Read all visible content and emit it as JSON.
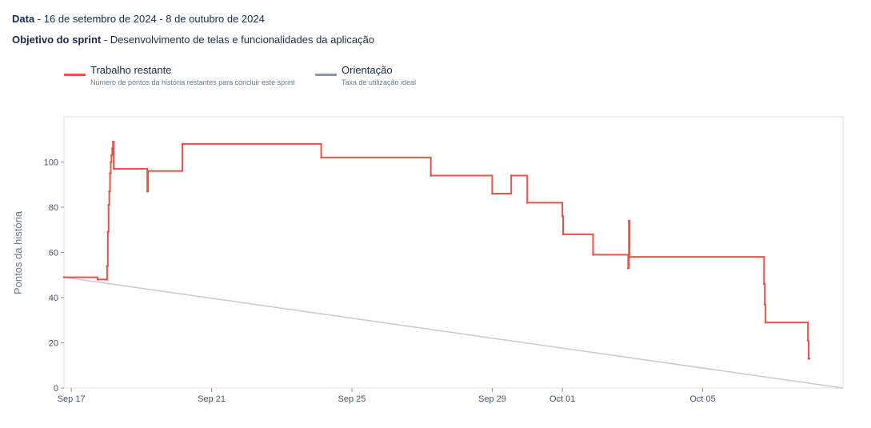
{
  "header": {
    "date_label": "Data",
    "date_value": "16 de setembro de 2024 - 8 de outubro de 2024",
    "goal_label": "Objetivo do sprint",
    "goal_value": "Desenvolvimento de telas e funcionalidades da aplicação",
    "separator": " - "
  },
  "legend": {
    "remaining": {
      "title": "Trabalho restante",
      "subtitle": "Número de pontos da história restantes para concluir este sprint",
      "color": "#e5544b"
    },
    "guide": {
      "title": "Orientação",
      "subtitle": "Taxa de utilização ideal",
      "color": "#8993a4"
    }
  },
  "chart_data": {
    "type": "line",
    "ylabel": "Pontos da história",
    "xlabel": "",
    "x_axis_type": "date",
    "xlim": [
      "2024-09-16T19:00",
      "2024-10-09T00:00"
    ],
    "ylim": [
      0,
      120
    ],
    "y_ticks": [
      0,
      20,
      40,
      60,
      80,
      100
    ],
    "x_ticks": [
      {
        "date": "2024-09-17T00:00",
        "label": "Sep 17"
      },
      {
        "date": "2024-09-21T00:00",
        "label": "Sep 21"
      },
      {
        "date": "2024-09-25T00:00",
        "label": "Sep 25"
      },
      {
        "date": "2024-09-29T00:00",
        "label": "Sep 29"
      },
      {
        "date": "2024-10-01T00:00",
        "label": "Oct 01"
      },
      {
        "date": "2024-10-05T00:00",
        "label": "Oct 05"
      }
    ],
    "series": [
      {
        "name": "Trabalho restante",
        "color": "#e5544b",
        "step": true,
        "points": [
          {
            "x": "2024-09-16T19:00",
            "y": 49
          },
          {
            "x": "2024-09-17T18:00",
            "y": 48
          },
          {
            "x": "2024-09-18T00:00",
            "y": 48
          },
          {
            "x": "2024-09-18T00:30",
            "y": 54
          },
          {
            "x": "2024-09-18T01:00",
            "y": 69
          },
          {
            "x": "2024-09-18T01:30",
            "y": 81
          },
          {
            "x": "2024-09-18T02:00",
            "y": 87
          },
          {
            "x": "2024-09-18T02:30",
            "y": 95
          },
          {
            "x": "2024-09-18T03:00",
            "y": 100
          },
          {
            "x": "2024-09-18T03:30",
            "y": 103
          },
          {
            "x": "2024-09-18T04:00",
            "y": 106
          },
          {
            "x": "2024-09-18T04:30",
            "y": 109
          },
          {
            "x": "2024-09-18T05:00",
            "y": 97
          },
          {
            "x": "2024-09-19T04:00",
            "y": 87
          },
          {
            "x": "2024-09-19T04:30",
            "y": 96
          },
          {
            "x": "2024-09-20T04:00",
            "y": 108
          },
          {
            "x": "2024-09-24T03:00",
            "y": 102
          },
          {
            "x": "2024-09-27T06:00",
            "y": 94
          },
          {
            "x": "2024-09-29T00:00",
            "y": 86
          },
          {
            "x": "2024-09-29T13:00",
            "y": 94
          },
          {
            "x": "2024-09-30T00:00",
            "y": 82
          },
          {
            "x": "2024-10-01T00:00",
            "y": 76
          },
          {
            "x": "2024-10-01T00:30",
            "y": 68
          },
          {
            "x": "2024-10-01T21:00",
            "y": 59
          },
          {
            "x": "2024-10-02T21:00",
            "y": 53
          },
          {
            "x": "2024-10-02T21:30",
            "y": 74
          },
          {
            "x": "2024-10-02T22:00",
            "y": 58
          },
          {
            "x": "2024-10-06T18:00",
            "y": 46
          },
          {
            "x": "2024-10-06T18:30",
            "y": 37
          },
          {
            "x": "2024-10-06T19:00",
            "y": 29
          },
          {
            "x": "2024-10-08T00:00",
            "y": 21
          },
          {
            "x": "2024-10-08T00:30",
            "y": 13
          },
          {
            "x": "2024-10-08T01:00",
            "y": 13
          }
        ]
      },
      {
        "name": "Orientação",
        "color": "#c9c9c9",
        "step": false,
        "points": [
          {
            "x": "2024-09-16T19:00",
            "y": 49
          },
          {
            "x": "2024-10-09T00:00",
            "y": 0
          }
        ]
      }
    ]
  }
}
